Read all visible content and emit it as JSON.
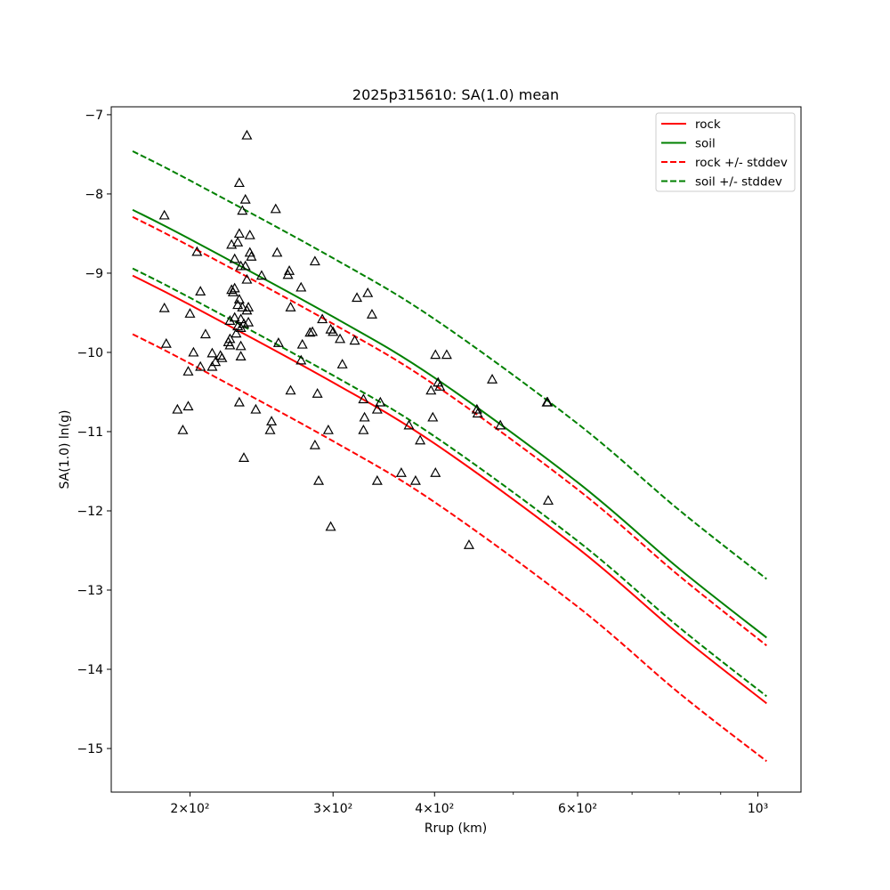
{
  "chart_data": {
    "type": "scatter",
    "title": "2025p315610: SA(1.0) mean",
    "xlabel": "Rrup (km)",
    "ylabel": "SA(1.0) ln(g)",
    "xscale": "log",
    "xlim": [
      160,
      1130
    ],
    "ylim": [
      -15.55,
      -6.9
    ],
    "xticks": [
      {
        "value": 200,
        "label": "2×10²"
      },
      {
        "value": 300,
        "label": "3×10²"
      },
      {
        "value": 400,
        "label": "4×10²"
      },
      {
        "value": 600,
        "label": "6×10²"
      },
      {
        "value": 1000,
        "label": "10³"
      }
    ],
    "xminor": [
      500,
      700,
      800,
      900
    ],
    "yticks": [
      {
        "value": -7,
        "label": "−7"
      },
      {
        "value": -8,
        "label": "−8"
      },
      {
        "value": -9,
        "label": "−9"
      },
      {
        "value": -10,
        "label": "−10"
      },
      {
        "value": -11,
        "label": "−11"
      },
      {
        "value": -12,
        "label": "−12"
      },
      {
        "value": -13,
        "label": "−13"
      },
      {
        "value": -14,
        "label": "−14"
      },
      {
        "value": -15,
        "label": "−15"
      }
    ],
    "grid": false,
    "legend_position": "top-right",
    "legend": [
      {
        "label": "rock",
        "color": "#ff0000",
        "dashed": false
      },
      {
        "label": "soil",
        "color": "#008000",
        "dashed": false
      },
      {
        "label": "rock +/- stddev",
        "color": "#ff0000",
        "dashed": true
      },
      {
        "label": "soil +/- stddev",
        "color": "#008000",
        "dashed": true
      }
    ],
    "lines": [
      {
        "kind": "rock",
        "color": "#ff0000",
        "dashed": false,
        "x": [
          170,
          200,
          300,
          400,
          600,
          800,
          1025
        ],
        "y": [
          -9.03,
          -9.4,
          -10.38,
          -11.15,
          -12.47,
          -13.56,
          -14.43
        ]
      },
      {
        "kind": "rock-plus-stddev",
        "color": "#ff0000",
        "dashed": true,
        "x": [
          170,
          200,
          300,
          400,
          600,
          800,
          1025
        ],
        "y": [
          -8.29,
          -8.66,
          -9.64,
          -10.41,
          -11.73,
          -12.82,
          -13.7
        ]
      },
      {
        "kind": "rock-minus-stddev",
        "color": "#ff0000",
        "dashed": true,
        "x": [
          170,
          200,
          300,
          400,
          600,
          800,
          1025
        ],
        "y": [
          -9.77,
          -10.14,
          -11.12,
          -11.89,
          -13.21,
          -14.3,
          -15.16
        ]
      },
      {
        "kind": "soil",
        "color": "#008000",
        "dashed": false,
        "x": [
          170,
          200,
          300,
          400,
          600,
          800,
          1025
        ],
        "y": [
          -8.2,
          -8.57,
          -9.55,
          -10.32,
          -11.64,
          -12.73,
          -13.6
        ]
      },
      {
        "kind": "soil-plus-stddev",
        "color": "#008000",
        "dashed": true,
        "x": [
          170,
          200,
          300,
          400,
          600,
          800,
          1025
        ],
        "y": [
          -7.46,
          -7.83,
          -8.81,
          -9.58,
          -10.9,
          -11.99,
          -12.86
        ]
      },
      {
        "kind": "soil-minus-stddev",
        "color": "#008000",
        "dashed": true,
        "x": [
          170,
          200,
          300,
          400,
          600,
          800,
          1025
        ],
        "y": [
          -8.94,
          -9.31,
          -10.29,
          -11.06,
          -12.38,
          -13.47,
          -14.34
        ]
      }
    ],
    "points": [
      {
        "x": 186,
        "y": -8.27
      },
      {
        "x": 186,
        "y": -9.44
      },
      {
        "x": 187,
        "y": -9.89
      },
      {
        "x": 193,
        "y": -10.72
      },
      {
        "x": 196,
        "y": -10.98
      },
      {
        "x": 199,
        "y": -10.24
      },
      {
        "x": 199,
        "y": -10.68
      },
      {
        "x": 200,
        "y": -9.51
      },
      {
        "x": 202,
        "y": -10.0
      },
      {
        "x": 204,
        "y": -8.73
      },
      {
        "x": 206,
        "y": -9.23
      },
      {
        "x": 206,
        "y": -10.18
      },
      {
        "x": 209,
        "y": -9.77
      },
      {
        "x": 213,
        "y": -10.01
      },
      {
        "x": 213,
        "y": -10.18
      },
      {
        "x": 215,
        "y": -10.12
      },
      {
        "x": 218,
        "y": -10.04
      },
      {
        "x": 219,
        "y": -10.07
      },
      {
        "x": 223,
        "y": -9.87
      },
      {
        "x": 224,
        "y": -9.6
      },
      {
        "x": 224,
        "y": -9.83
      },
      {
        "x": 224,
        "y": -9.91
      },
      {
        "x": 225,
        "y": -9.21
      },
      {
        "x": 225,
        "y": -8.64
      },
      {
        "x": 226,
        "y": -9.24
      },
      {
        "x": 227,
        "y": -9.19
      },
      {
        "x": 227,
        "y": -9.56
      },
      {
        "x": 227,
        "y": -8.82
      },
      {
        "x": 228,
        "y": -9.76
      },
      {
        "x": 229,
        "y": -9.4
      },
      {
        "x": 229,
        "y": -9.67
      },
      {
        "x": 229,
        "y": -8.61
      },
      {
        "x": 230,
        "y": -10.63
      },
      {
        "x": 230,
        "y": -9.33
      },
      {
        "x": 230,
        "y": -8.5
      },
      {
        "x": 230,
        "y": -7.86
      },
      {
        "x": 231,
        "y": -8.91
      },
      {
        "x": 231,
        "y": -9.58
      },
      {
        "x": 231,
        "y": -9.69
      },
      {
        "x": 231,
        "y": -10.05
      },
      {
        "x": 231,
        "y": -9.92
      },
      {
        "x": 232,
        "y": -8.21
      },
      {
        "x": 232,
        "y": -9.43
      },
      {
        "x": 233,
        "y": -9.64
      },
      {
        "x": 233,
        "y": -11.33
      },
      {
        "x": 234,
        "y": -8.07
      },
      {
        "x": 234,
        "y": -8.91
      },
      {
        "x": 235,
        "y": -9.47
      },
      {
        "x": 235,
        "y": -9.08
      },
      {
        "x": 235,
        "y": -7.26
      },
      {
        "x": 236,
        "y": -9.43
      },
      {
        "x": 236,
        "y": -9.62
      },
      {
        "x": 237,
        "y": -8.52
      },
      {
        "x": 237,
        "y": -8.74
      },
      {
        "x": 238,
        "y": -8.79
      },
      {
        "x": 241,
        "y": -10.72
      },
      {
        "x": 245,
        "y": -9.03
      },
      {
        "x": 251,
        "y": -10.98
      },
      {
        "x": 252,
        "y": -10.87
      },
      {
        "x": 255,
        "y": -8.19
      },
      {
        "x": 256,
        "y": -8.74
      },
      {
        "x": 257,
        "y": -9.88
      },
      {
        "x": 264,
        "y": -9.02
      },
      {
        "x": 265,
        "y": -8.97
      },
      {
        "x": 266,
        "y": -9.43
      },
      {
        "x": 266,
        "y": -10.48
      },
      {
        "x": 274,
        "y": -10.1
      },
      {
        "x": 275,
        "y": -9.9
      },
      {
        "x": 274,
        "y": -9.18
      },
      {
        "x": 281,
        "y": -9.75
      },
      {
        "x": 283,
        "y": -9.74
      },
      {
        "x": 285,
        "y": -11.17
      },
      {
        "x": 285,
        "y": -8.85
      },
      {
        "x": 287,
        "y": -10.52
      },
      {
        "x": 288,
        "y": -11.62
      },
      {
        "x": 291,
        "y": -9.58
      },
      {
        "x": 296,
        "y": -10.98
      },
      {
        "x": 298,
        "y": -12.2
      },
      {
        "x": 298,
        "y": -9.71
      },
      {
        "x": 300,
        "y": -9.74
      },
      {
        "x": 306,
        "y": -9.83
      },
      {
        "x": 308,
        "y": -10.15
      },
      {
        "x": 319,
        "y": -9.85
      },
      {
        "x": 321,
        "y": -9.31
      },
      {
        "x": 327,
        "y": -10.59
      },
      {
        "x": 327,
        "y": -10.98
      },
      {
        "x": 328,
        "y": -10.82
      },
      {
        "x": 331,
        "y": -9.25
      },
      {
        "x": 335,
        "y": -9.52
      },
      {
        "x": 340,
        "y": -11.62
      },
      {
        "x": 340,
        "y": -10.72
      },
      {
        "x": 343,
        "y": -10.63
      },
      {
        "x": 364,
        "y": -11.52
      },
      {
        "x": 372,
        "y": -10.92
      },
      {
        "x": 379,
        "y": -11.62
      },
      {
        "x": 384,
        "y": -11.11
      },
      {
        "x": 396,
        "y": -10.48
      },
      {
        "x": 398,
        "y": -10.82
      },
      {
        "x": 401,
        "y": -10.03
      },
      {
        "x": 401,
        "y": -11.52
      },
      {
        "x": 404,
        "y": -10.38
      },
      {
        "x": 406,
        "y": -10.43
      },
      {
        "x": 414,
        "y": -10.03
      },
      {
        "x": 441,
        "y": -12.43
      },
      {
        "x": 451,
        "y": -10.72
      },
      {
        "x": 452,
        "y": -10.77
      },
      {
        "x": 471,
        "y": -10.34
      },
      {
        "x": 482,
        "y": -10.92
      },
      {
        "x": 550,
        "y": -10.63
      },
      {
        "x": 551,
        "y": -10.63
      },
      {
        "x": 552,
        "y": -11.87
      }
    ]
  }
}
